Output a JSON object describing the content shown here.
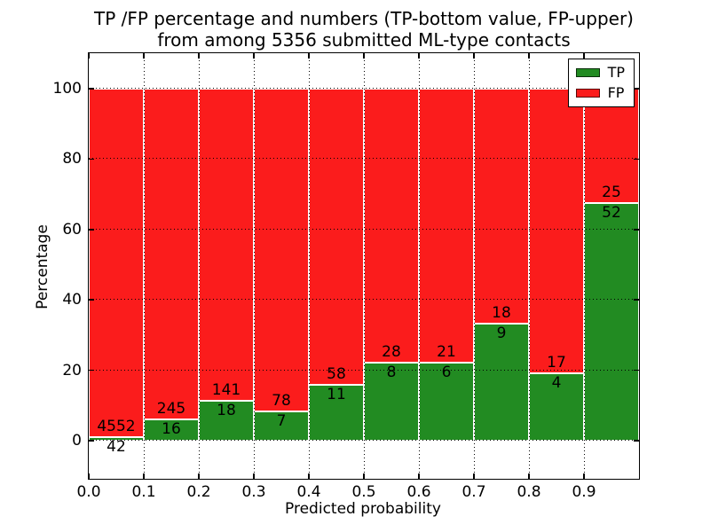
{
  "title": {
    "line1": "TP /FP percentage and numbers (TP-bottom value, FP-upper)",
    "line2": "from among 5356 submitted ML-type contacts"
  },
  "axes": {
    "xlabel": "Predicted probability",
    "ylabel": "Percentage",
    "xtick_labels": [
      "0.0",
      "0.1",
      "0.2",
      "0.3",
      "0.4",
      "0.5",
      "0.6",
      "0.7",
      "0.8",
      "0.9"
    ],
    "ytick_labels": [
      "0",
      "20",
      "40",
      "60",
      "80",
      "100"
    ],
    "ytick_values": [
      0,
      20,
      40,
      60,
      80,
      100
    ]
  },
  "legend": [
    {
      "label": "TP",
      "color": "#228b22"
    },
    {
      "label": "FP",
      "color": "#fb1c1c"
    }
  ],
  "colors": {
    "tp": "#228b22",
    "fp": "#fb1c1c",
    "grid": "#000000",
    "spine": "#000000",
    "bar_edge": "#ffffff",
    "background": "#ffffff",
    "text": "#000000"
  },
  "chart_data": {
    "type": "bar",
    "stacked": true,
    "normalized_to_percent": true,
    "title": "TP /FP percentage and numbers (TP-bottom value, FP-upper) from among 5356 submitted ML-type contacts",
    "xlabel": "Predicted probability",
    "ylabel": "Percentage",
    "total_contacts": 5356,
    "bin_width": 0.1,
    "bin_starts": [
      0.0,
      0.1,
      0.2,
      0.3,
      0.4,
      0.5,
      0.6,
      0.7,
      0.8,
      0.9
    ],
    "categories": [
      "0.0-0.1",
      "0.1-0.2",
      "0.2-0.3",
      "0.3-0.4",
      "0.4-0.5",
      "0.5-0.6",
      "0.6-0.7",
      "0.7-0.8",
      "0.8-0.9",
      "0.9-1.0"
    ],
    "series": [
      {
        "name": "TP",
        "color": "#228b22",
        "counts": [
          42,
          16,
          18,
          7,
          11,
          8,
          6,
          9,
          4,
          52
        ],
        "percent": [
          0.91,
          6.13,
          11.32,
          8.24,
          15.94,
          22.22,
          22.22,
          33.33,
          19.05,
          67.53
        ]
      },
      {
        "name": "FP",
        "color": "#fb1c1c",
        "counts": [
          4552,
          245,
          141,
          78,
          58,
          28,
          21,
          18,
          17,
          25
        ],
        "percent": [
          99.09,
          93.87,
          88.68,
          91.76,
          84.06,
          77.78,
          77.78,
          66.67,
          80.95,
          32.47
        ]
      }
    ],
    "xlim": [
      0.0,
      1.0
    ],
    "ylim": [
      -11,
      110
    ],
    "grid": true,
    "grid_style": "dotted",
    "legend_position": "upper right"
  }
}
